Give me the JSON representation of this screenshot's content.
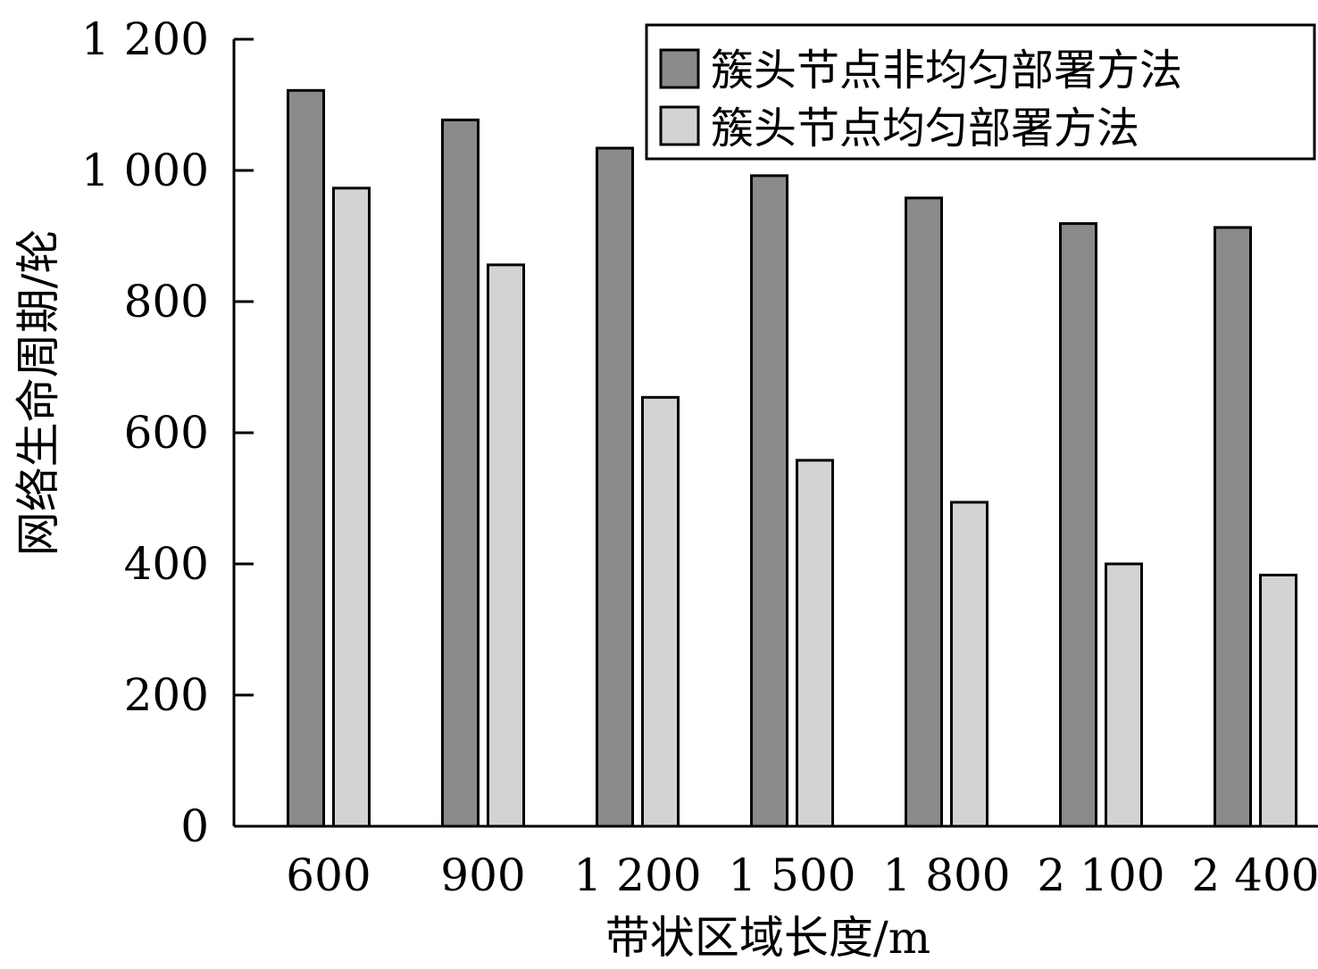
{
  "chart_data": {
    "type": "bar",
    "title": "",
    "xlabel": "带状区域长度/m",
    "ylabel": "网络生命周期/轮",
    "categories": [
      "600",
      "900",
      "1 200",
      "1 500",
      "1 800",
      "2 100",
      "2 400"
    ],
    "series": [
      {
        "name": "簇头节点非均匀部署方法",
        "color": "#8a8a8a",
        "values": [
          1122,
          1077,
          1034,
          992,
          958,
          919,
          913
        ]
      },
      {
        "name": "簇头节点均匀部署方法",
        "color": "#d3d3d3",
        "values": [
          973,
          856,
          654,
          558,
          494,
          400,
          383
        ]
      }
    ],
    "ylim": [
      0,
      1200
    ],
    "yticks": [
      0,
      200,
      400,
      600,
      800,
      1000,
      1200
    ],
    "ytick_labels": [
      "0",
      "200",
      "400",
      "600",
      "800",
      "1 000",
      "1 200"
    ],
    "grid": false,
    "legend_position": "top-right"
  }
}
